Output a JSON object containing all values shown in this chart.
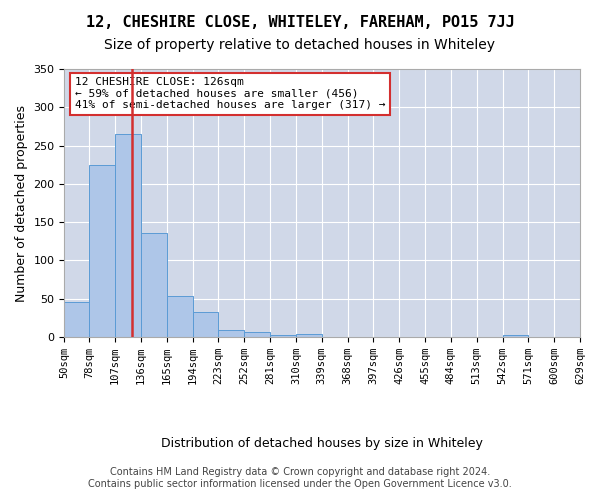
{
  "title": "12, CHESHIRE CLOSE, WHITELEY, FAREHAM, PO15 7JJ",
  "subtitle": "Size of property relative to detached houses in Whiteley",
  "xlabel": "Distribution of detached houses by size in Whiteley",
  "ylabel": "Number of detached properties",
  "footer_line1": "Contains HM Land Registry data © Crown copyright and database right 2024.",
  "footer_line2": "Contains public sector information licensed under the Open Government Licence v3.0.",
  "annotation_line1": "12 CHESHIRE CLOSE: 126sqm",
  "annotation_line2": "← 59% of detached houses are smaller (456)",
  "annotation_line3": "41% of semi-detached houses are larger (317) →",
  "property_size": 126,
  "bar_edges": [
    50,
    78,
    107,
    136,
    165,
    194,
    223,
    252,
    281,
    310,
    339,
    368,
    397,
    426,
    455,
    484,
    513,
    542,
    571,
    600,
    629
  ],
  "bar_values": [
    46,
    224,
    265,
    136,
    54,
    33,
    9,
    7,
    3,
    4,
    0,
    0,
    0,
    0,
    0,
    0,
    0,
    3,
    0,
    0
  ],
  "bar_color": "#aec6e8",
  "bar_edge_color": "#5b9bd5",
  "highlight_color": "#d32f2f",
  "annotation_box_color": "#d32f2f",
  "background_color": "#ffffff",
  "grid_color": "#d0d8e8",
  "ylim": [
    0,
    350
  ],
  "yticks": [
    0,
    50,
    100,
    150,
    200,
    250,
    300,
    350
  ],
  "title_fontsize": 11,
  "subtitle_fontsize": 10,
  "axis_label_fontsize": 9,
  "tick_fontsize": 7.5,
  "annotation_fontsize": 8,
  "footer_fontsize": 7
}
